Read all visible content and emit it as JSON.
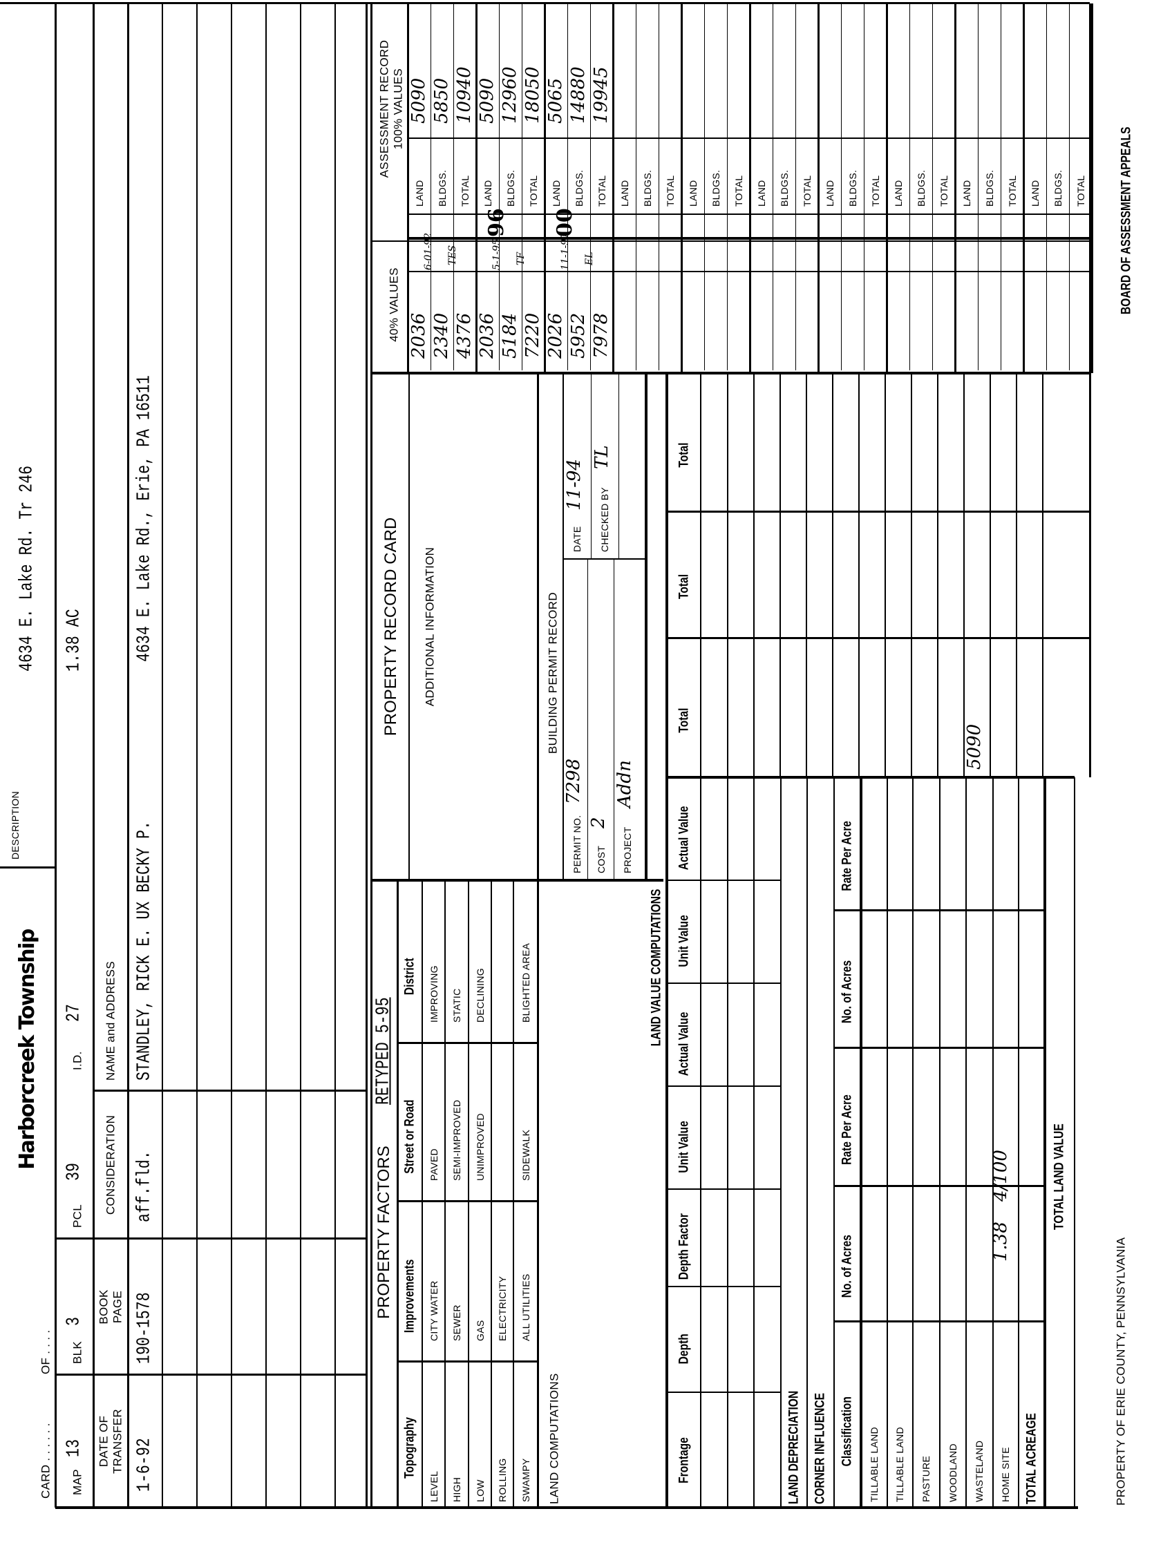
{
  "header": {
    "township": "Harborcreek Township",
    "card_label": "CARD . . . . . .",
    "card_of": "OF . . . .",
    "map_label": "MAP",
    "map": "13",
    "blk_label": "BLK",
    "blk": "3",
    "pcl_label": "PCL",
    "pcl": "39",
    "id_label": "I.D.",
    "id": "27"
  },
  "description": {
    "label": "DESCRIPTION",
    "line1": "4634 E. Lake Rd. Tr 246",
    "line2": "1.38 AC"
  },
  "transfers": {
    "headers": [
      "DATE OF",
      "TRANSFER",
      "BOOK",
      "PAGE",
      "CONSIDERATION",
      "NAME and ADDRESS"
    ],
    "rows": [
      {
        "date": "1-6-92",
        "book_page": "190-1578",
        "consideration": "aff.fld.",
        "name": "STANDLEY, RICK E. UX BECKY P.",
        "address": "4634 E. Lake Rd., Erie, PA 16511"
      }
    ]
  },
  "property_factors": {
    "title": "PROPERTY FACTORS",
    "retyped": "RETYPED 5-95",
    "columns": [
      "Topography",
      "Improvements",
      "Street or Road",
      "District"
    ],
    "rows": [
      [
        "LEVEL",
        "CITY WATER",
        "PAVED",
        "IMPROVING"
      ],
      [
        "HIGH",
        "SEWER",
        "SEMI-IMPROVED",
        "STATIC"
      ],
      [
        "LOW",
        "GAS",
        "UNIMPROVED",
        "DECLINING"
      ],
      [
        "ROLLING",
        "ELECTRICITY",
        "",
        ""
      ],
      [
        "SWAMPY",
        "ALL UTILITIES",
        "SIDEWALK",
        "BLIGHTED AREA"
      ]
    ],
    "land_computations": "LAND COMPUTATIONS"
  },
  "record_card": {
    "title": "PROPERTY RECORD CARD",
    "additional": "ADDITIONAL INFORMATION"
  },
  "permit": {
    "title": "BUILDING PERMIT RECORD",
    "permit_no_label": "PERMIT NO.",
    "permit_no": "7298",
    "cost_label": "COST",
    "cost": "2",
    "project_label": "PROJECT",
    "project": "Addn",
    "date_label": "DATE",
    "date": "11-94",
    "checked_label": "CHECKED BY",
    "checked": "TL"
  },
  "land_value": {
    "title": "LAND VALUE COMPUTATIONS",
    "columns": [
      "Frontage",
      "Depth",
      "Depth Factor",
      "Unit Value",
      "Actual Value",
      "Unit Value",
      "Actual Value",
      "Total",
      "Total",
      "Total"
    ],
    "depreciation": "LAND DEPRECIATION",
    "corner": "CORNER INFLUENCE",
    "class_columns": [
      "Classification",
      "No. of Acres",
      "Rate Per Acre",
      "No. of Acres",
      "Rate Per Acre"
    ],
    "class_rows": [
      {
        "name": "TILLABLE LAND"
      },
      {
        "name": "TILLABLE LAND"
      },
      {
        "name": "PASTURE"
      },
      {
        "name": "WOODLAND"
      },
      {
        "name": "WASTELAND"
      },
      {
        "name": "HOME SITE",
        "acres": "1.38",
        "rate": "4/100"
      }
    ],
    "total_acreage": "TOTAL ACREAGE",
    "total_land_value": "TOTAL LAND VALUE",
    "handwritten_total": "5090"
  },
  "values_40": {
    "title": "40% VALUES",
    "groups": [
      {
        "land": "2036",
        "bldgs": "2340",
        "total": "4376",
        "note1": "6-01-92",
        "note2": "TES"
      },
      {
        "land": "2036",
        "bldgs": "5184",
        "total": "7220",
        "note1": "5-1-95",
        "note2": "TF"
      },
      {
        "land": "2026",
        "bldgs": "5952",
        "total": "7978",
        "note1": "11-1-97",
        "note2": "EL"
      }
    ]
  },
  "assessment": {
    "title": "ASSESSMENT RECORD",
    "subtitle": "100% VALUES",
    "labels": [
      "LAND",
      "BLDGS.",
      "TOTAL"
    ],
    "groups": [
      {
        "land": "5090",
        "bldgs": "5850",
        "total": "10940"
      },
      {
        "land": "5090",
        "bldgs": "12960",
        "total": "18050"
      },
      {
        "land": "5065",
        "bldgs": "14880",
        "total": "19945"
      }
    ],
    "stamps": [
      "96",
      "00"
    ]
  },
  "footer": {
    "left": "PROPERTY OF ERIE COUNTY, PENNSYLVANIA",
    "right": "BOARD OF ASSESSMENT APPEALS"
  }
}
